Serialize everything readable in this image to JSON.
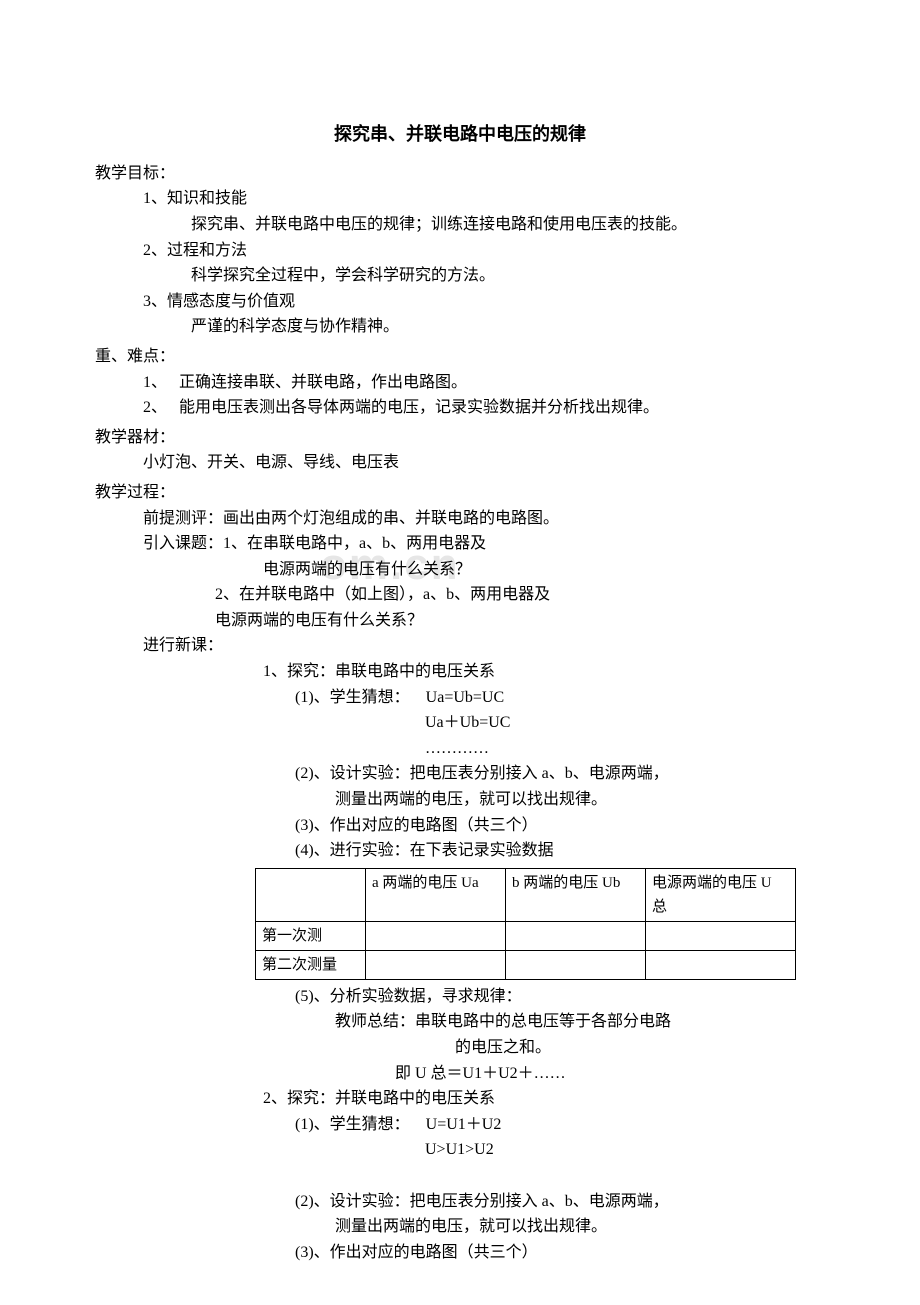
{
  "title": "探究串、并联电路中电压的规律",
  "watermark": "om.cn",
  "goals_heading": "教学目标：",
  "goal1_title": "1、知识和技能",
  "goal1_body": "探究串、并联电路中电压的规律；训练连接电路和使用电压表的技能。",
  "goal2_title": "2、过程和方法",
  "goal2_body": "科学探究全过程中，学会科学研究的方法。",
  "goal3_title": "3、情感态度与价值观",
  "goal3_body": "严谨的科学态度与协作精神。",
  "hard_heading": "重、难点：",
  "hard1": "1、　 正确连接串联、并联电路，作出电路图。",
  "hard2": "2、　 能用电压表测出各导体两端的电压，记录实验数据并分析找出规律。",
  "equip_heading": "教学器材：",
  "equip_body": "小灯泡、开关、电源、导线、电压表",
  "process_heading": "教学过程：",
  "pre_eval": "前提测评：画出由两个灯泡组成的串、并联电路的电路图。",
  "intro1": "引入课题：1、在串联电路中，a、b、两用电器及",
  "intro1b": "电源两端的电压有什么关系？",
  "intro2": "2、在并联电路中（如上图），a、b、两用电器及",
  "intro2b": "电源两端的电压有什么关系？",
  "new_lesson": "进行新课：",
  "ex1_heading": "1、探究：串联电路中的电压关系",
  "ex1_guess_label": "(1)、学生猜想：",
  "ex1_guess1": "Ua=Ub=UC",
  "ex1_guess2": "Ua＋Ub=UC",
  "ex1_guess3": "…………",
  "ex1_design1": "(2)、设计实验：把电压表分别接入 a、b、电源两端，",
  "ex1_design2": "测量出两端的电压，就可以找出规律。",
  "ex1_fig": "(3)、作出对应的电路图（共三个）",
  "ex1_do": "(4)、进行实验：在下表记录实验数据",
  "table": {
    "headers": [
      "",
      "a 两端的电压 Ua",
      "b 两端的电压 Ub",
      "电源两端的电压 U\n总"
    ],
    "rows": [
      [
        "第一次测",
        "",
        "",
        ""
      ],
      [
        "第二次测量",
        "",
        "",
        ""
      ]
    ]
  },
  "ex1_analyze": "(5)、分析实验数据，寻求规律：",
  "ex1_teacher1": "教师总结：串联电路中的总电压等于各部分电路",
  "ex1_teacher2": "的电压之和。",
  "ex1_formula": "即 U 总＝U1＋U2＋……",
  "ex2_heading": "2、探究：并联电路中的电压关系",
  "ex2_guess_label": "(1)、学生猜想：",
  "ex2_guess1": "U=U1＋U2",
  "ex2_guess2": "U>U1>U2",
  "ex2_design1": "(2)、设计实验：把电压表分别接入 a、b、电源两端，",
  "ex2_design2": "测量出两端的电压，就可以找出规律。",
  "ex2_fig": "(3)、作出对应的电路图（共三个）"
}
